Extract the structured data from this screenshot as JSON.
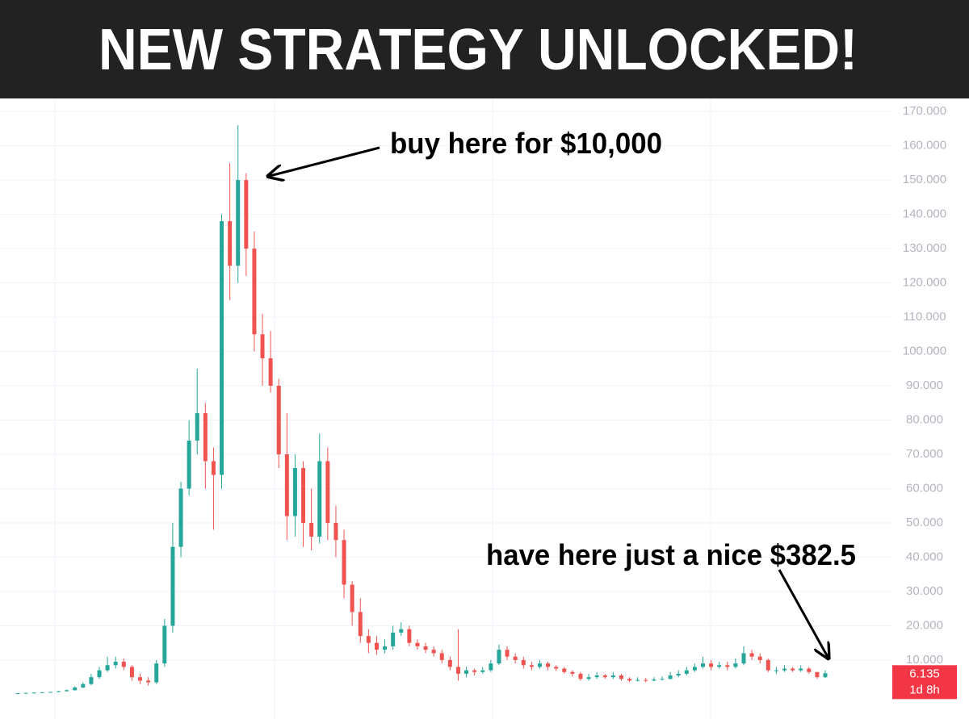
{
  "chart_data": {
    "type": "candlestick",
    "title": "NEW STRATEGY UNLOCKED!",
    "annotations": [
      "buy here for $10,000",
      "have here just a nice $382.5"
    ],
    "open": [
      250,
      300,
      400,
      500,
      600,
      700,
      900,
      1200,
      2000,
      3000,
      5000,
      7000,
      8500,
      9500,
      8000,
      5000,
      4000,
      3500,
      9000,
      20000,
      43000,
      60000,
      74000,
      82000,
      68000,
      64000,
      138000,
      125000,
      150000,
      130000,
      105000,
      98000,
      90000,
      70000,
      52000,
      66000,
      50000,
      46000,
      68000,
      50000,
      45000,
      32000,
      24000,
      17000,
      15000,
      13000,
      14000,
      18000,
      19000,
      15000,
      14000,
      13000,
      12000,
      10000,
      8000,
      6000,
      7000,
      6500,
      7000,
      9000,
      13000,
      11000,
      10000,
      8500,
      8000,
      9000,
      8000,
      7500,
      6500,
      6000,
      4500,
      5000,
      5500,
      5000,
      5500,
      4500,
      4000,
      4200,
      4000,
      4300,
      4500,
      5500,
      6000,
      7000,
      8000,
      9000,
      8000,
      8500,
      8000,
      9000,
      12000,
      11000,
      10000,
      7000,
      7000,
      7500,
      7000,
      7500,
      6500,
      5000
    ],
    "high": [
      350,
      450,
      550,
      650,
      750,
      1000,
      1400,
      2300,
      3500,
      6000,
      8000,
      11000,
      11000,
      10500,
      8500,
      6000,
      5000,
      10000,
      22000,
      50000,
      62000,
      80000,
      95000,
      85000,
      72000,
      140000,
      155000,
      166000,
      152000,
      135000,
      111000,
      106000,
      92000,
      82000,
      70000,
      68000,
      60000,
      76000,
      72000,
      55000,
      48000,
      33000,
      28000,
      19000,
      17000,
      16000,
      20000,
      21000,
      20000,
      16000,
      15000,
      14000,
      13000,
      11000,
      19000,
      8000,
      7500,
      8000,
      10000,
      14500,
      14000,
      12000,
      11000,
      9500,
      10000,
      9500,
      8500,
      8000,
      7000,
      6500,
      6000,
      6500,
      6000,
      6500,
      6000,
      5000,
      5000,
      4800,
      5000,
      5200,
      6500,
      7000,
      8000,
      9000,
      11000,
      10000,
      9500,
      9500,
      10500,
      14000,
      13000,
      12000,
      10500,
      8000,
      8500,
      8000,
      8500,
      8000,
      6500,
      7000
    ],
    "low": [
      150,
      250,
      350,
      450,
      550,
      650,
      850,
      1100,
      1800,
      2700,
      4500,
      6500,
      7500,
      7000,
      4000,
      3000,
      2500,
      3000,
      8000,
      18000,
      40000,
      58000,
      70000,
      60000,
      48000,
      60000,
      115000,
      120000,
      122000,
      100000,
      90000,
      88000,
      66000,
      45000,
      46000,
      43000,
      42000,
      44000,
      45000,
      40000,
      28000,
      20000,
      15000,
      12000,
      11500,
      12000,
      13000,
      17000,
      14000,
      13000,
      12000,
      11000,
      9000,
      7000,
      4000,
      5000,
      5500,
      6000,
      6500,
      8500,
      10000,
      9000,
      7500,
      7000,
      7500,
      7000,
      6800,
      6000,
      5200,
      4000,
      4000,
      4500,
      4500,
      4500,
      4000,
      3500,
      3700,
      3500,
      3800,
      4000,
      4300,
      5000,
      5500,
      6500,
      7500,
      7000,
      7500,
      7000,
      7500,
      8500,
      10000,
      9000,
      6500,
      6000,
      6500,
      6500,
      6500,
      6000,
      4500,
      4800
    ],
    "close": [
      300,
      400,
      500,
      600,
      700,
      900,
      1200,
      2000,
      3000,
      5000,
      7000,
      8500,
      9500,
      8000,
      5000,
      4000,
      3500,
      9000,
      20000,
      43000,
      60000,
      74000,
      82000,
      68000,
      64000,
      138000,
      125000,
      150000,
      130000,
      105000,
      98000,
      90000,
      70000,
      52000,
      66000,
      50000,
      46000,
      68000,
      50000,
      45000,
      32000,
      24000,
      17000,
      15000,
      13000,
      14000,
      18000,
      19000,
      15000,
      14000,
      13000,
      12000,
      10000,
      8000,
      6000,
      7000,
      6500,
      7000,
      9000,
      13000,
      11000,
      10000,
      8500,
      8000,
      9000,
      8000,
      7500,
      6500,
      6000,
      4500,
      5000,
      5500,
      5000,
      5500,
      4500,
      4000,
      4200,
      4000,
      4300,
      4500,
      5500,
      6000,
      7000,
      8000,
      9000,
      8000,
      8500,
      8000,
      9000,
      12000,
      11000,
      10000,
      7000,
      7000,
      7500,
      7000,
      7500,
      6500,
      5000,
      6135
    ],
    "up_color": "#26a69a",
    "down_color": "#ef5350",
    "ylim": [
      -7200,
      173800
    ],
    "yticks": [
      {
        "value": 10000,
        "label": "10.000"
      },
      {
        "value": 20000,
        "label": "20.000"
      },
      {
        "value": 30000,
        "label": "30.000"
      },
      {
        "value": 40000,
        "label": "40.000"
      },
      {
        "value": 50000,
        "label": "50.000"
      },
      {
        "value": 60000,
        "label": "60.000"
      },
      {
        "value": 70000,
        "label": "70.000"
      },
      {
        "value": 80000,
        "label": "80.000"
      },
      {
        "value": 90000,
        "label": "90.000"
      },
      {
        "value": 100000,
        "label": "100.000"
      },
      {
        "value": 110000,
        "label": "110.000"
      },
      {
        "value": 120000,
        "label": "120.000"
      },
      {
        "value": 130000,
        "label": "130.000"
      },
      {
        "value": 140000,
        "label": "140.000"
      },
      {
        "value": 150000,
        "label": "150.000"
      },
      {
        "value": 160000,
        "label": "160.000"
      },
      {
        "value": 170000,
        "label": "170.000"
      }
    ],
    "grid": true,
    "last_price": {
      "value": 6135,
      "label": "6.135"
    },
    "countdown": "1d 8h"
  }
}
